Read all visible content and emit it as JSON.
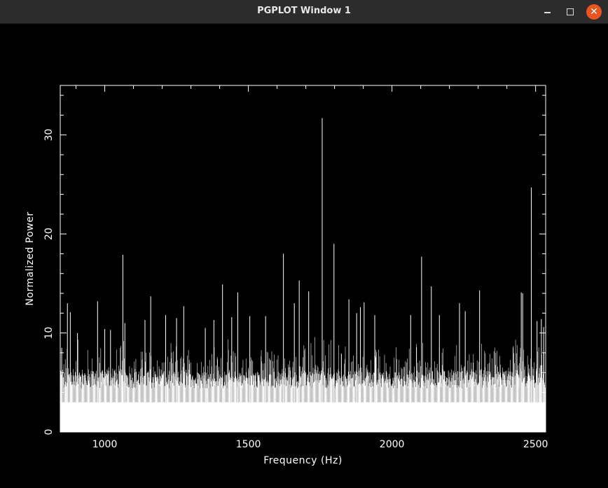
{
  "window": {
    "title": "PGPLOT Window 1",
    "controls": {
      "minimize_icon": "minimize-icon",
      "maximize_icon": "maximize-icon",
      "close_icon": "close-icon",
      "close_color": "#e95420"
    }
  },
  "colors": {
    "background": "#000000",
    "foreground": "#ffffff"
  },
  "chart_data": {
    "type": "bar",
    "title": "",
    "xlabel": "Frequency (Hz)",
    "ylabel": "Normalized Power",
    "xlim": [
      845,
      2535
    ],
    "ylim": [
      0,
      35
    ],
    "xticks": [
      "1000",
      "1500",
      "2000",
      "2500"
    ],
    "yticks": [
      "0",
      "10",
      "20",
      "30"
    ],
    "baseline_min": 3.0,
    "peaks": [
      {
        "x": 850,
        "y": 8.5
      },
      {
        "x": 870,
        "y": 13.0
      },
      {
        "x": 880,
        "y": 12.1
      },
      {
        "x": 905,
        "y": 10.0
      },
      {
        "x": 975,
        "y": 13.2
      },
      {
        "x": 1000,
        "y": 10.4
      },
      {
        "x": 1020,
        "y": 10.3
      },
      {
        "x": 1063,
        "y": 17.9
      },
      {
        "x": 1070,
        "y": 11.0
      },
      {
        "x": 1140,
        "y": 11.3
      },
      {
        "x": 1160,
        "y": 13.7
      },
      {
        "x": 1212,
        "y": 11.8
      },
      {
        "x": 1250,
        "y": 11.5
      },
      {
        "x": 1275,
        "y": 12.7
      },
      {
        "x": 1350,
        "y": 10.5
      },
      {
        "x": 1380,
        "y": 11.3
      },
      {
        "x": 1410,
        "y": 14.9
      },
      {
        "x": 1442,
        "y": 11.6
      },
      {
        "x": 1463,
        "y": 14.1
      },
      {
        "x": 1505,
        "y": 11.7
      },
      {
        "x": 1560,
        "y": 11.7
      },
      {
        "x": 1622,
        "y": 18.0
      },
      {
        "x": 1660,
        "y": 13.0
      },
      {
        "x": 1677,
        "y": 15.3
      },
      {
        "x": 1710,
        "y": 14.2
      },
      {
        "x": 1757,
        "y": 31.7
      },
      {
        "x": 1798,
        "y": 19.0
      },
      {
        "x": 1850,
        "y": 13.4
      },
      {
        "x": 1877,
        "y": 12.0
      },
      {
        "x": 1890,
        "y": 12.6
      },
      {
        "x": 1903,
        "y": 13.1
      },
      {
        "x": 1940,
        "y": 11.8
      },
      {
        "x": 2065,
        "y": 11.8
      },
      {
        "x": 2103,
        "y": 17.7
      },
      {
        "x": 2137,
        "y": 14.7
      },
      {
        "x": 2165,
        "y": 11.8
      },
      {
        "x": 2235,
        "y": 13.0
      },
      {
        "x": 2255,
        "y": 12.2
      },
      {
        "x": 2305,
        "y": 14.3
      },
      {
        "x": 2450,
        "y": 14.1
      },
      {
        "x": 2455,
        "y": 14.0
      },
      {
        "x": 2485,
        "y": 24.7
      },
      {
        "x": 2505,
        "y": 11.2
      },
      {
        "x": 2520,
        "y": 11.4
      },
      {
        "x": 2528,
        "y": 10.6
      }
    ]
  }
}
